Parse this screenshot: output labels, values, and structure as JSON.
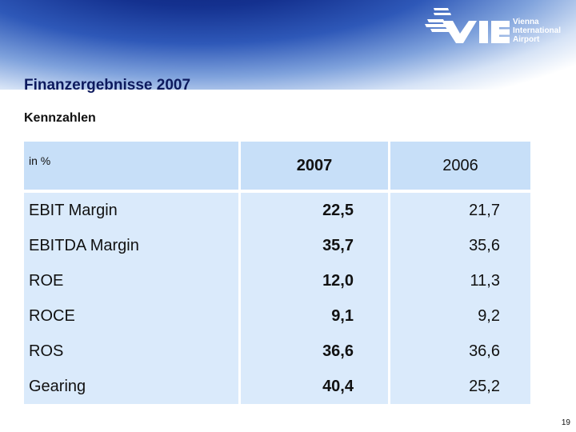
{
  "slide": {
    "title": "Finanzergebnisse 2007",
    "subtitle": "Kennzahlen",
    "page_number": "19"
  },
  "logo": {
    "mark": "VIE",
    "name_lines": [
      "Vienna",
      "International",
      "Airport"
    ]
  },
  "table": {
    "unit_label": "in %",
    "columns": [
      "2007",
      "2006"
    ],
    "rows": [
      {
        "label": "EBIT Margin",
        "v2007": "22,5",
        "v2006": "21,7"
      },
      {
        "label": "EBITDA Margin",
        "v2007": "35,7",
        "v2006": "35,6"
      },
      {
        "label": "ROE",
        "v2007": "12,0",
        "v2006": "11,3"
      },
      {
        "label": "ROCE",
        "v2007": "9,1",
        "v2006": "9,2"
      },
      {
        "label": "ROS",
        "v2007": "36,6",
        "v2006": "36,6"
      },
      {
        "label": "Gearing",
        "v2007": "40,4",
        "v2006": "25,2"
      }
    ]
  }
}
